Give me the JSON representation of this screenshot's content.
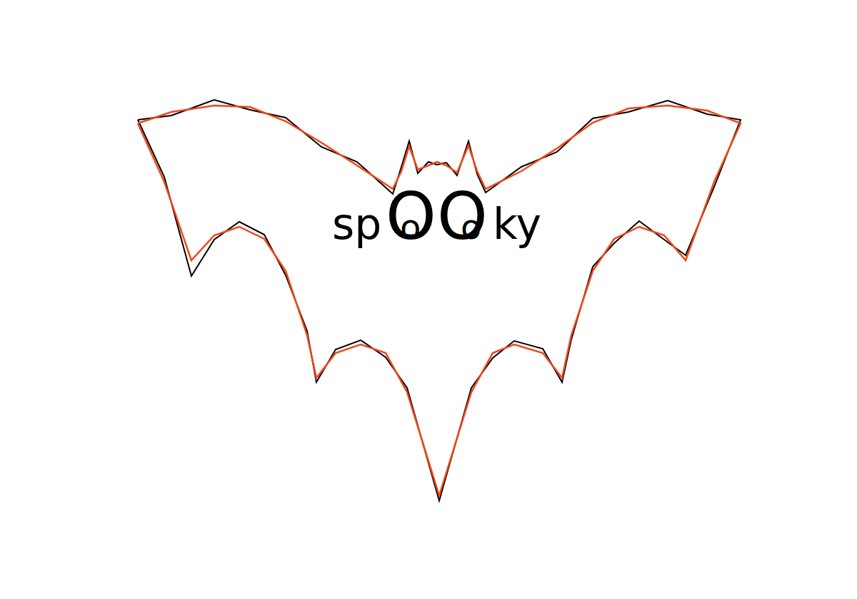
{
  "chart_data": {
    "type": "line",
    "annotation": [
      "sp",
      "o",
      "O",
      "O",
      "o",
      "ky"
    ],
    "xlim": [
      -4.25,
      4.25
    ],
    "ylim": [
      -2.9,
      2.9
    ],
    "tick_labels": false,
    "grid": false,
    "series": [
      {
        "color": "#000000",
        "line_style": "solid",
        "x": [
          -4.22,
          -3.75,
          -3.15,
          -2.65,
          -2.15,
          -1.65,
          -1.15,
          -0.65,
          -0.53,
          -0.42,
          -0.3,
          -0.15,
          -0.03,
          0.1,
          0.25,
          0.41,
          0.53,
          0.65,
          1.15,
          1.65,
          2.15,
          2.65,
          3.2,
          3.75,
          4.22,
          3.85,
          3.45,
          3.15,
          2.8,
          2.45,
          2.15,
          1.85,
          1.72,
          1.45,
          1.05,
          0.75,
          0.45,
          0.0,
          -0.45,
          -0.75,
          -1.1,
          -1.45,
          -1.72,
          -1.85,
          -2.15,
          -2.45,
          -2.8,
          -3.15,
          -3.47,
          -3.85,
          -4.22
        ],
        "values": [
          2.52,
          2.58,
          2.8,
          2.66,
          2.55,
          2.14,
          1.93,
          1.48,
          1.86,
          2.22,
          1.77,
          1.93,
          1.89,
          1.92,
          1.74,
          2.22,
          1.76,
          1.5,
          1.86,
          2.07,
          2.54,
          2.63,
          2.79,
          2.6,
          2.52,
          1.58,
          0.62,
          0.84,
          1.1,
          0.79,
          0.46,
          -0.56,
          -1.16,
          -0.69,
          -0.58,
          -0.82,
          -1.24,
          -2.82,
          -1.24,
          -0.81,
          -0.57,
          -0.7,
          -1.16,
          -0.44,
          0.34,
          0.91,
          1.09,
          0.84,
          0.33,
          1.72,
          2.52
        ]
      },
      {
        "color": "#f0461a",
        "line_style": "solid",
        "x": [
          -4.22,
          -3.75,
          -3.15,
          -2.65,
          -2.15,
          -1.65,
          -1.15,
          -0.65,
          -0.53,
          -0.42,
          -0.3,
          -0.15,
          -0.03,
          0.1,
          0.25,
          0.41,
          0.53,
          0.65,
          1.15,
          1.65,
          2.15,
          2.65,
          3.2,
          3.75,
          4.22,
          3.85,
          3.45,
          3.15,
          2.8,
          2.45,
          2.15,
          1.85,
          1.72,
          1.45,
          1.05,
          0.75,
          0.45,
          0.0,
          -0.45,
          -0.75,
          -1.1,
          -1.45,
          -1.72,
          -1.85,
          -2.15,
          -2.45,
          -2.8,
          -3.15,
          -3.47,
          -3.85,
          -4.22
        ],
        "values": [
          2.47,
          2.63,
          2.72,
          2.7,
          2.5,
          2.2,
          1.88,
          1.55,
          1.8,
          2.15,
          1.82,
          1.88,
          1.93,
          1.88,
          1.78,
          2.16,
          1.8,
          1.55,
          1.8,
          2.12,
          2.48,
          2.68,
          2.72,
          2.65,
          2.47,
          1.65,
          0.55,
          0.9,
          1.02,
          0.85,
          0.4,
          -0.5,
          -1.1,
          -0.75,
          -0.63,
          -0.75,
          -1.3,
          -2.75,
          -1.3,
          -0.75,
          -0.63,
          -0.75,
          -1.1,
          -0.5,
          0.4,
          0.85,
          1.02,
          0.9,
          0.55,
          1.65,
          2.47
        ]
      }
    ]
  }
}
